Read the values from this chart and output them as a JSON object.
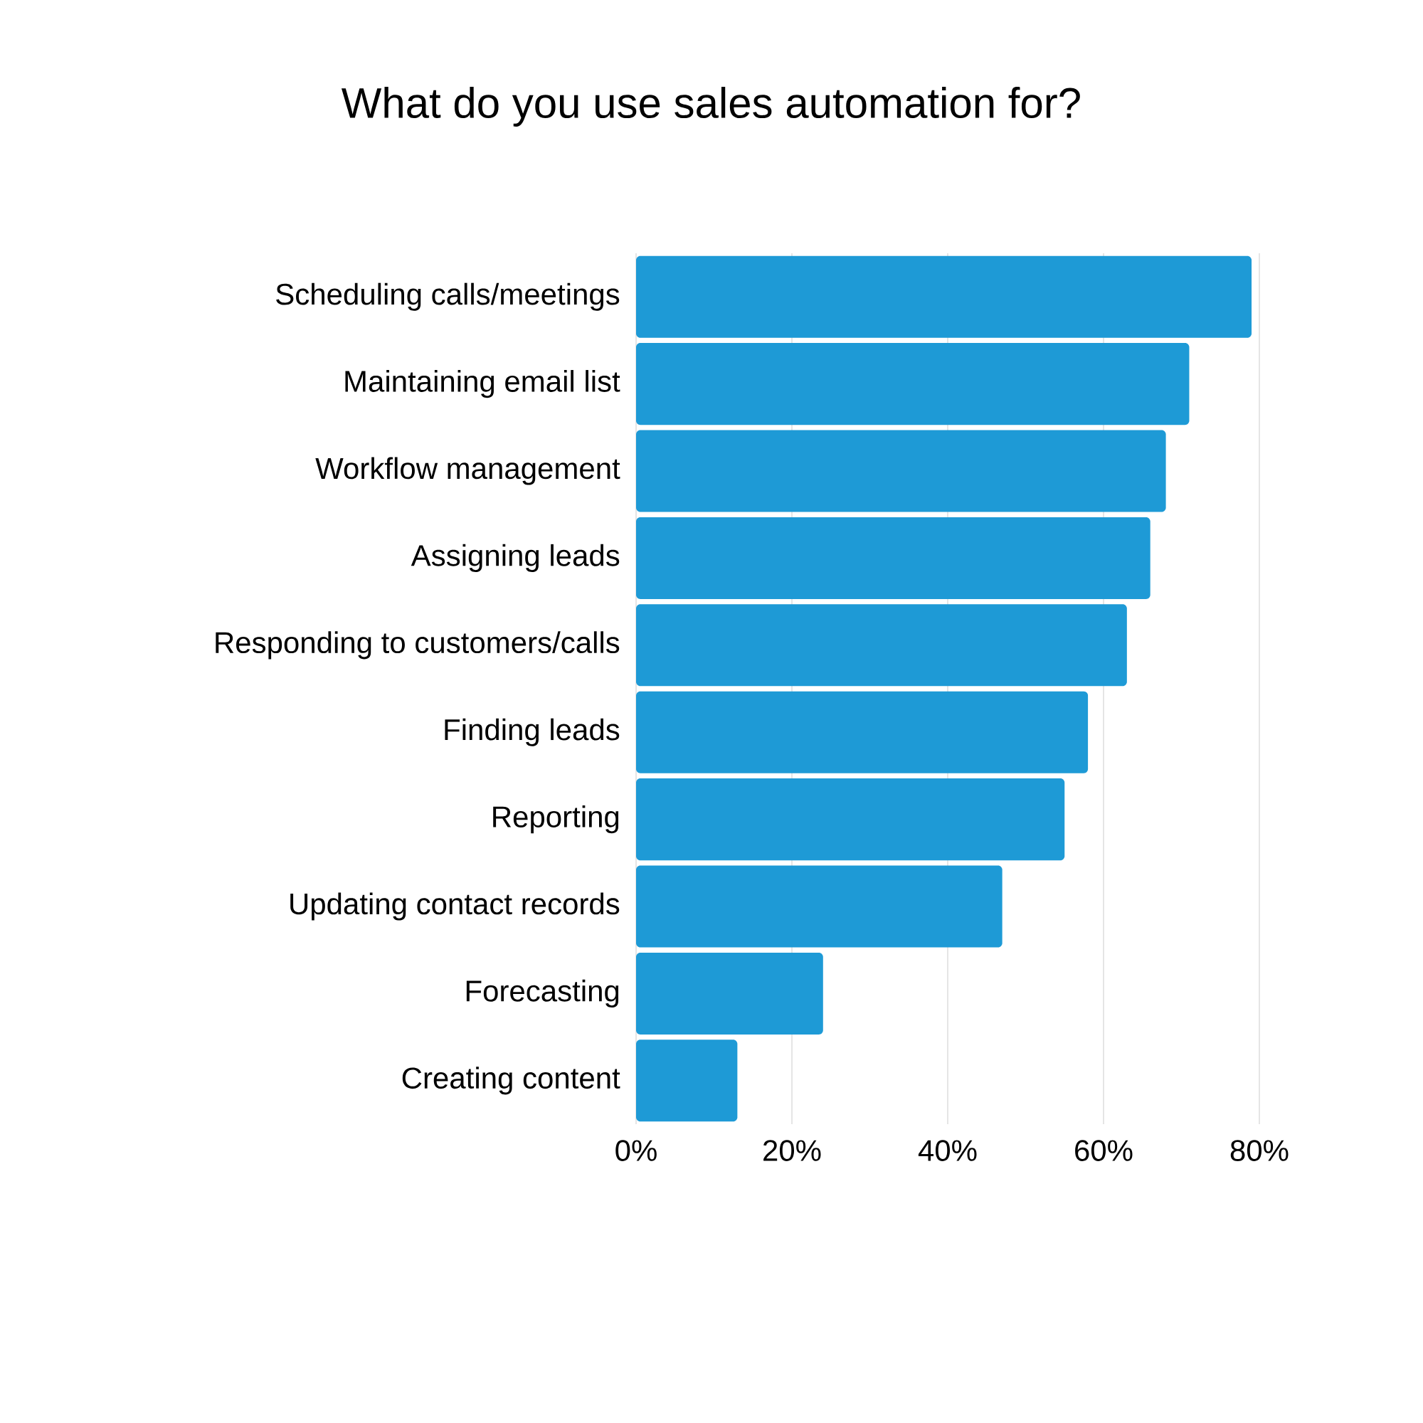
{
  "chart_data": {
    "type": "bar",
    "orientation": "horizontal",
    "title": "What do you use sales automation for?",
    "categories": [
      "Scheduling calls/meetings",
      "Maintaining email list",
      "Workflow management",
      "Assigning leads",
      "Responding to customers/calls",
      "Finding leads",
      "Reporting",
      "Updating contact records",
      "Forecasting",
      "Creating content"
    ],
    "values": [
      79,
      71,
      68,
      66,
      63,
      58,
      55,
      47,
      24,
      13
    ],
    "color": "#1e9ad6",
    "xlim": [
      0,
      80
    ],
    "xticks": [
      {
        "value": 0,
        "label": "0%"
      },
      {
        "value": 20,
        "label": "20%"
      },
      {
        "value": 40,
        "label": "40%"
      },
      {
        "value": 60,
        "label": "60%"
      },
      {
        "value": 80,
        "label": "80%"
      }
    ],
    "grid": "x"
  }
}
